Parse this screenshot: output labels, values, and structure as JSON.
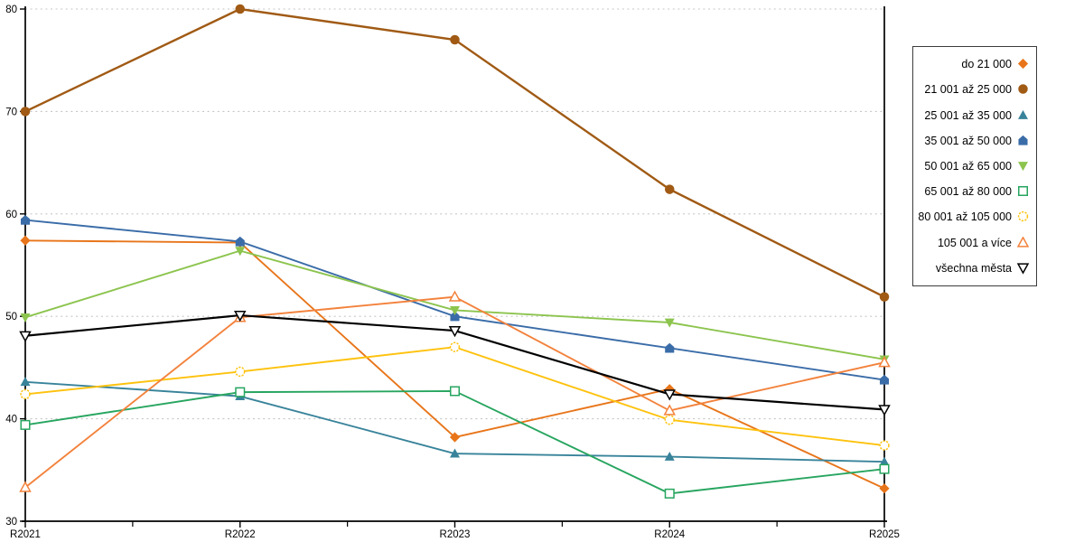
{
  "chart_data": {
    "type": "line",
    "title": "",
    "xlabel": "",
    "ylabel": "",
    "x_labels": [
      "R2021",
      "R2022",
      "R2023",
      "R2024",
      "R2025"
    ],
    "ylim": [
      30,
      80
    ],
    "yticks": [
      30,
      40,
      50,
      60,
      70,
      80
    ],
    "grid": "horizontal-dotted",
    "gridline_color": "#c6c6c6",
    "axis_color": "#000000",
    "legend_position": "right",
    "series": [
      {
        "name": "do 21 000",
        "marker": "diamond",
        "marker_style": "solid",
        "color": "#e8751a",
        "values": [
          57.4,
          57.2,
          38.2,
          42.9,
          33.2
        ]
      },
      {
        "name": "21 001 až 25 000",
        "marker": "circle",
        "marker_style": "solid",
        "color": "#a05a14",
        "values": [
          70.0,
          80.0,
          77.0,
          62.4,
          51.9
        ]
      },
      {
        "name": "25 001 až 35 000",
        "marker": "triangle-up",
        "marker_style": "solid",
        "color": "#38839a",
        "values": [
          43.6,
          42.2,
          36.6,
          36.3,
          35.8
        ]
      },
      {
        "name": "35 001 až 50 000",
        "marker": "pentagon",
        "marker_style": "solid",
        "color": "#3a6ca8",
        "values": [
          59.4,
          57.3,
          50.0,
          46.9,
          43.8
        ]
      },
      {
        "name": "50 001 až 65 000",
        "marker": "triangle-down",
        "marker_style": "solid",
        "color": "#8cc44e",
        "values": [
          49.9,
          56.4,
          50.6,
          49.4,
          45.8
        ]
      },
      {
        "name": "65 001 až 80 000",
        "marker": "square",
        "marker_style": "hollow",
        "color": "#27a55f",
        "values": [
          39.4,
          42.6,
          42.7,
          32.7,
          35.1
        ]
      },
      {
        "name": "80 001 až 105 000",
        "marker": "circle",
        "marker_style": "hollow",
        "color": "#fec20d",
        "values": [
          42.4,
          44.6,
          47.0,
          39.9,
          37.4
        ]
      },
      {
        "name": "105 001 a více",
        "marker": "triangle-up",
        "marker_style": "hollow",
        "color": "#f3823c",
        "values": [
          33.3,
          49.9,
          51.9,
          40.8,
          45.5
        ]
      },
      {
        "name": "všechna města",
        "marker": "triangle-down",
        "marker_style": "hollow",
        "color": "#000000",
        "values": [
          48.1,
          50.1,
          48.6,
          42.4,
          40.9
        ]
      }
    ]
  }
}
